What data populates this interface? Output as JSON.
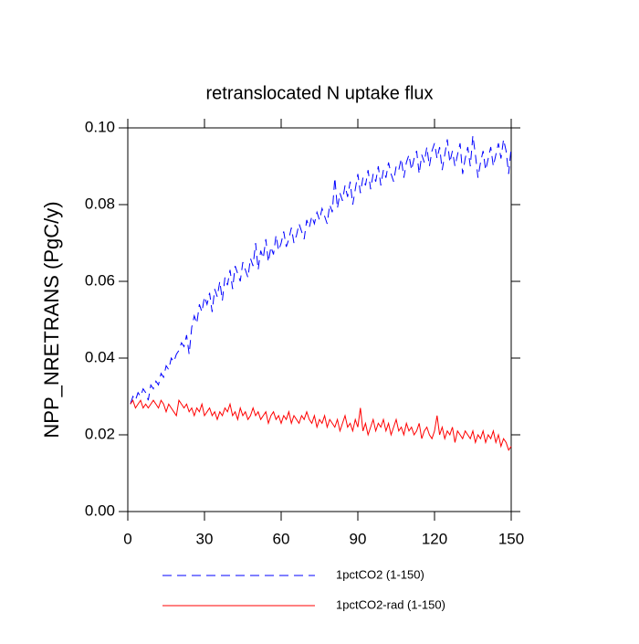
{
  "chart_data": {
    "type": "line",
    "title": "retranslocated N uptake flux",
    "y_label": "NPP_NRETRANS  (PgC/y)",
    "xlim": [
      0,
      150
    ],
    "xticks": [
      0,
      30,
      60,
      90,
      120,
      150
    ],
    "ylim": [
      0,
      0.1
    ],
    "yticks": [
      {
        "value": 0,
        "label": "0.00"
      },
      {
        "value": 0.02,
        "label": "0.02"
      },
      {
        "value": 0.04,
        "label": "0.04"
      },
      {
        "value": 0.06,
        "label": "0.06"
      },
      {
        "value": 0.08,
        "label": "0.08"
      },
      {
        "value": 0.1,
        "label": "0.10"
      }
    ],
    "x": [
      1,
      2,
      3,
      4,
      5,
      6,
      7,
      8,
      9,
      10,
      11,
      12,
      13,
      14,
      15,
      16,
      17,
      18,
      19,
      20,
      21,
      22,
      23,
      24,
      25,
      26,
      27,
      28,
      29,
      30,
      31,
      32,
      33,
      34,
      35,
      36,
      37,
      38,
      39,
      40,
      41,
      42,
      43,
      44,
      45,
      46,
      47,
      48,
      49,
      50,
      51,
      52,
      53,
      54,
      55,
      56,
      57,
      58,
      59,
      60,
      61,
      62,
      63,
      64,
      65,
      66,
      67,
      68,
      69,
      70,
      71,
      72,
      73,
      74,
      75,
      76,
      77,
      78,
      79,
      80,
      81,
      82,
      83,
      84,
      85,
      86,
      87,
      88,
      89,
      90,
      91,
      92,
      93,
      94,
      95,
      96,
      97,
      98,
      99,
      100,
      101,
      102,
      103,
      104,
      105,
      106,
      107,
      108,
      109,
      110,
      111,
      112,
      113,
      114,
      115,
      116,
      117,
      118,
      119,
      120,
      121,
      122,
      123,
      124,
      125,
      126,
      127,
      128,
      129,
      130,
      131,
      132,
      133,
      134,
      135,
      136,
      137,
      138,
      139,
      140,
      141,
      142,
      143,
      144,
      145,
      146,
      147,
      148,
      149,
      150
    ],
    "series": [
      {
        "name": "1pctCO2 (1-150)",
        "color": "#0000ff",
        "dash": true,
        "values": [
          0.028,
          0.03,
          0.029,
          0.031,
          0.03,
          0.032,
          0.031,
          0.029,
          0.033,
          0.032,
          0.034,
          0.033,
          0.036,
          0.035,
          0.038,
          0.037,
          0.04,
          0.039,
          0.041,
          0.042,
          0.044,
          0.043,
          0.046,
          0.041,
          0.048,
          0.051,
          0.049,
          0.054,
          0.052,
          0.056,
          0.054,
          0.057,
          0.052,
          0.058,
          0.056,
          0.06,
          0.055,
          0.061,
          0.059,
          0.063,
          0.058,
          0.064,
          0.062,
          0.06,
          0.065,
          0.063,
          0.061,
          0.066,
          0.064,
          0.07,
          0.063,
          0.068,
          0.066,
          0.071,
          0.065,
          0.069,
          0.067,
          0.072,
          0.068,
          0.07,
          0.073,
          0.069,
          0.071,
          0.074,
          0.07,
          0.072,
          0.075,
          0.073,
          0.071,
          0.076,
          0.074,
          0.077,
          0.075,
          0.078,
          0.076,
          0.079,
          0.077,
          0.075,
          0.08,
          0.078,
          0.087,
          0.079,
          0.083,
          0.081,
          0.085,
          0.082,
          0.086,
          0.08,
          0.084,
          0.088,
          0.083,
          0.087,
          0.085,
          0.089,
          0.084,
          0.088,
          0.086,
          0.09,
          0.085,
          0.089,
          0.087,
          0.091,
          0.088,
          0.086,
          0.09,
          0.089,
          0.092,
          0.087,
          0.091,
          0.093,
          0.089,
          0.092,
          0.094,
          0.088,
          0.093,
          0.091,
          0.095,
          0.09,
          0.094,
          0.096,
          0.092,
          0.095,
          0.089,
          0.093,
          0.097,
          0.091,
          0.094,
          0.09,
          0.093,
          0.096,
          0.088,
          0.092,
          0.095,
          0.09,
          0.098,
          0.093,
          0.087,
          0.091,
          0.094,
          0.089,
          0.092,
          0.095,
          0.09,
          0.093,
          0.096,
          0.092,
          0.097,
          0.094,
          0.088,
          0.095
        ]
      },
      {
        "name": "1pctCO2-rad (1-150)",
        "color": "#ff0000",
        "dash": false,
        "values": [
          0.028,
          0.029,
          0.027,
          0.028,
          0.029,
          0.027,
          0.028,
          0.027,
          0.028,
          0.029,
          0.028,
          0.027,
          0.029,
          0.028,
          0.026,
          0.028,
          0.027,
          0.026,
          0.025,
          0.029,
          0.028,
          0.027,
          0.028,
          0.026,
          0.027,
          0.025,
          0.027,
          0.026,
          0.028,
          0.025,
          0.026,
          0.027,
          0.025,
          0.026,
          0.024,
          0.026,
          0.025,
          0.027,
          0.026,
          0.028,
          0.025,
          0.026,
          0.024,
          0.027,
          0.025,
          0.026,
          0.024,
          0.025,
          0.027,
          0.025,
          0.026,
          0.024,
          0.025,
          0.026,
          0.023,
          0.025,
          0.026,
          0.024,
          0.025,
          0.023,
          0.025,
          0.024,
          0.026,
          0.023,
          0.025,
          0.024,
          0.023,
          0.025,
          0.024,
          0.026,
          0.024,
          0.023,
          0.025,
          0.022,
          0.024,
          0.023,
          0.025,
          0.022,
          0.024,
          0.023,
          0.022,
          0.024,
          0.021,
          0.023,
          0.025,
          0.022,
          0.023,
          0.021,
          0.024,
          0.022,
          0.027,
          0.021,
          0.023,
          0.02,
          0.022,
          0.024,
          0.021,
          0.023,
          0.022,
          0.024,
          0.021,
          0.023,
          0.02,
          0.022,
          0.024,
          0.021,
          0.022,
          0.02,
          0.023,
          0.021,
          0.022,
          0.02,
          0.021,
          0.023,
          0.019,
          0.021,
          0.022,
          0.02,
          0.019,
          0.021,
          0.025,
          0.02,
          0.022,
          0.019,
          0.021,
          0.02,
          0.022,
          0.018,
          0.021,
          0.02,
          0.019,
          0.021,
          0.02,
          0.019,
          0.021,
          0.018,
          0.02,
          0.019,
          0.021,
          0.018,
          0.02,
          0.019,
          0.021,
          0.018,
          0.02,
          0.017,
          0.019,
          0.018,
          0.016,
          0.017
        ]
      }
    ]
  }
}
